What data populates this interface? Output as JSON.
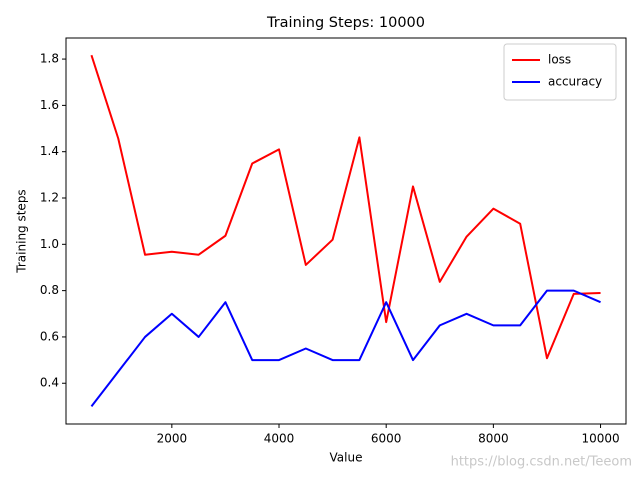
{
  "chart_data": {
    "type": "line",
    "title": "Training Steps: 10000",
    "x_label": "Value",
    "y_label": "Training steps",
    "x": [
      500,
      1000,
      1500,
      2000,
      2500,
      3000,
      3500,
      4000,
      4500,
      5000,
      5500,
      6000,
      6500,
      7000,
      7500,
      8000,
      8500,
      9000,
      9500,
      10000
    ],
    "series": [
      {
        "name": "loss",
        "color": "#ff0000",
        "values": [
          1.817,
          1.457,
          0.955,
          0.968,
          0.955,
          1.037,
          1.349,
          1.41,
          0.911,
          1.02,
          1.462,
          0.664,
          1.25,
          0.838,
          1.033,
          1.154,
          1.089,
          0.508,
          0.786,
          0.79
        ]
      },
      {
        "name": "accuracy",
        "color": "#0000ff",
        "values": [
          0.3,
          0.45,
          0.6,
          0.7,
          0.6,
          0.75,
          0.5,
          0.5,
          0.55,
          0.5,
          0.5,
          0.75,
          0.5,
          0.65,
          0.7,
          0.65,
          0.65,
          0.8,
          0.8,
          0.75
        ]
      }
    ],
    "xlim": [
      25,
      10475
    ],
    "ylim": [
      0.224,
      1.891
    ],
    "xticks": [
      2000,
      4000,
      6000,
      8000,
      10000
    ],
    "yticks": [
      0.4,
      0.6,
      0.8,
      {
        "value": 1,
        "label": "1.0"
      },
      1.2,
      1.4,
      1.6,
      1.8
    ],
    "legend": "upper-right",
    "grid": false,
    "watermark": "https://blog.csdn.net/Teeom"
  }
}
